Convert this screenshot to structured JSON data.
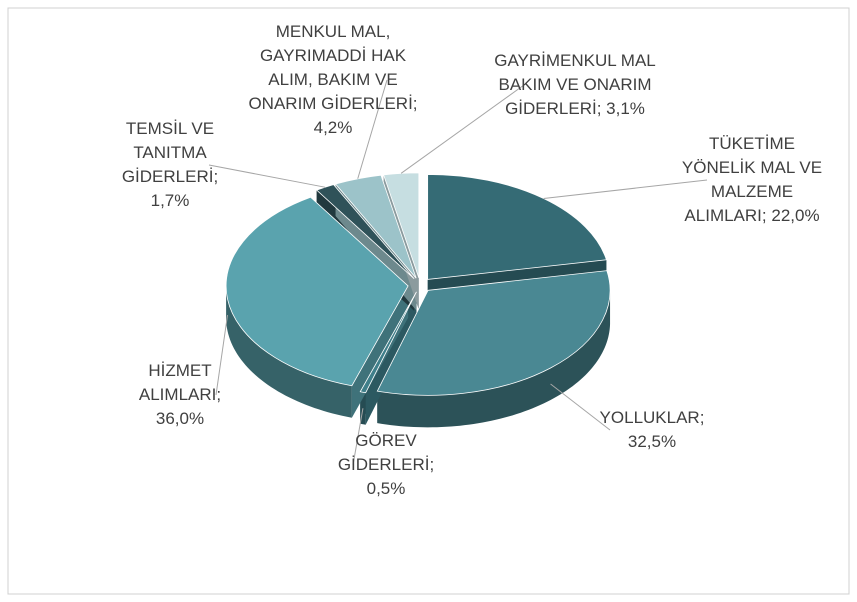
{
  "chart_data": {
    "type": "pie",
    "categories": [
      "TÜKETİME YÖNELİK MAL VE MALZEME ALIMLARI;",
      "YOLLUKLAR;",
      "GÖREV GİDERLERİ;",
      "HİZMET ALIMLARI;",
      "TEMSİL VE TANITMA GİDERLERİ;",
      "MENKUL MAL, GAYRIMADDİ HAK ALIM, BAKIM VE ONARIM GİDERLERİ;",
      "GAYRİMENKUL MAL BAKIM VE ONARIM GİDERLERİ;"
    ],
    "values": [
      22.0,
      32.5,
      0.5,
      36.0,
      1.7,
      4.2,
      3.1
    ],
    "value_labels": [
      "22,0%",
      "32,5%",
      "0,5%",
      "36,0%",
      "1,7%",
      "4,2%",
      "3,1%"
    ],
    "colors": [
      "#356b75",
      "#4a8893",
      "#3f7f8a",
      "#5aa3ae",
      "#2f5259",
      "#9cc3c9",
      "#c6dee1"
    ]
  }
}
